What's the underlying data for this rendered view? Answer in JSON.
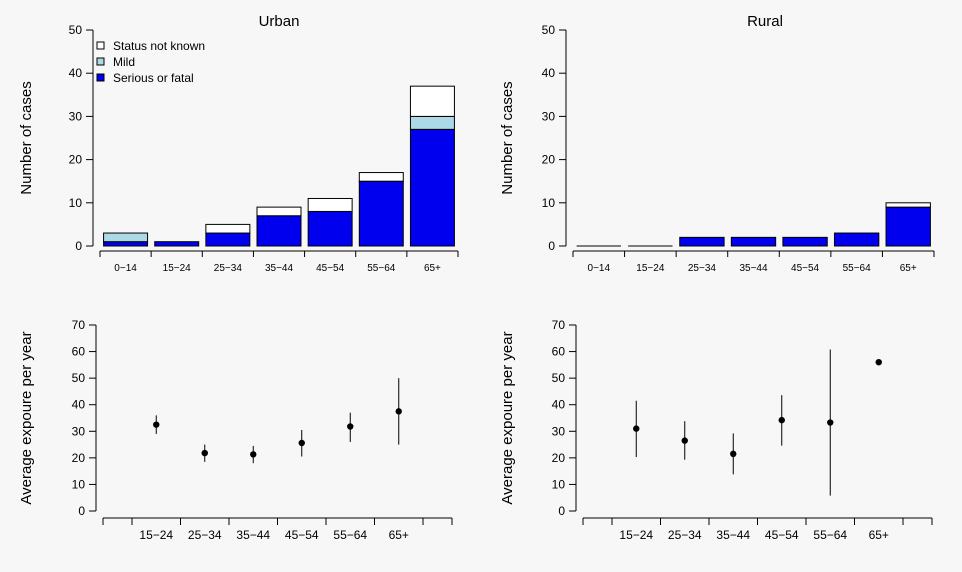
{
  "chart_data": [
    {
      "type": "bar",
      "stacked": true,
      "title": "Urban",
      "xlabel": "",
      "ylabel": "Number of cases",
      "ylim": [
        0,
        50
      ],
      "yticks": [
        0,
        10,
        20,
        30,
        40,
        50
      ],
      "categories": [
        "0−14",
        "15−24",
        "25−34",
        "35−44",
        "45−54",
        "55−64",
        "65+"
      ],
      "series": [
        {
          "name": "Serious or fatal",
          "color": "#0000ee",
          "values": [
            1,
            1,
            3,
            7,
            8,
            15,
            27
          ]
        },
        {
          "name": "Mild",
          "color": "#add8e6",
          "values": [
            2,
            0,
            0,
            0,
            0,
            0,
            3
          ]
        },
        {
          "name": "Status not known",
          "color": "#ffffff",
          "values": [
            0,
            0,
            2,
            2,
            3,
            2,
            7
          ]
        }
      ],
      "legend": {
        "position": "top-left",
        "entries": [
          "Status not known",
          "Mild",
          "Serious or fatal"
        ]
      },
      "grid": false
    },
    {
      "type": "bar",
      "stacked": true,
      "title": "Rural",
      "xlabel": "",
      "ylabel": "Number of cases",
      "ylim": [
        0,
        50
      ],
      "yticks": [
        0,
        10,
        20,
        30,
        40,
        50
      ],
      "categories": [
        "0−14",
        "15−24",
        "25−34",
        "35−44",
        "45−54",
        "55−64",
        "65+"
      ],
      "series": [
        {
          "name": "Serious or fatal",
          "color": "#0000ee",
          "values": [
            0,
            0,
            2,
            2,
            2,
            3,
            9
          ]
        },
        {
          "name": "Mild",
          "color": "#add8e6",
          "values": [
            0,
            0,
            0,
            0,
            0,
            0,
            0
          ]
        },
        {
          "name": "Status not known",
          "color": "#ffffff",
          "values": [
            0,
            0,
            0,
            0,
            0,
            0,
            1
          ]
        }
      ],
      "grid": false
    },
    {
      "type": "scatter",
      "error_bars": true,
      "title": "",
      "xlabel": "",
      "ylabel": "Average expoure per year",
      "ylim": [
        0,
        70
      ],
      "yticks": [
        0,
        10,
        20,
        30,
        40,
        50,
        60,
        70
      ],
      "categories": [
        "15−24",
        "25−34",
        "35−44",
        "45−54",
        "55−64",
        "65+"
      ],
      "values": [
        32.5,
        21.8,
        21.3,
        25.6,
        31.8,
        37.5
      ],
      "lower": [
        29,
        18.5,
        18,
        20.5,
        26,
        25
      ],
      "upper": [
        36,
        25,
        24.5,
        30.5,
        37,
        50
      ],
      "grid": false
    },
    {
      "type": "scatter",
      "error_bars": true,
      "title": "",
      "xlabel": "",
      "ylabel": "Average expoure per year",
      "ylim": [
        0,
        70
      ],
      "yticks": [
        0,
        10,
        20,
        30,
        40,
        50,
        60,
        70
      ],
      "categories": [
        "15−24",
        "25−34",
        "35−44",
        "45−54",
        "55−64",
        "65+"
      ],
      "values": [
        31,
        26.5,
        21.5,
        34.2,
        33.3,
        56
      ],
      "lower": [
        20.3,
        19.3,
        13.8,
        24.6,
        5.8,
        56
      ],
      "upper": [
        41.5,
        33.8,
        29.2,
        43.6,
        60.8,
        56
      ],
      "grid": false
    }
  ]
}
